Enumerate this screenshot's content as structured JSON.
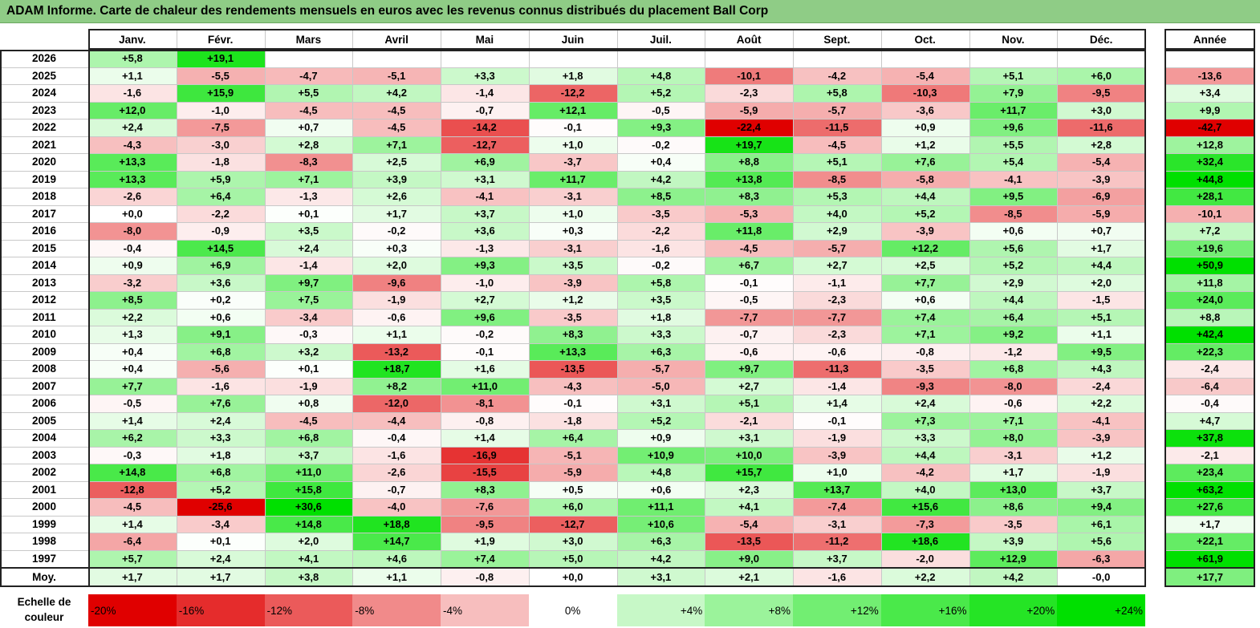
{
  "colors": {
    "title_bg": "#8fcc86",
    "positive_max": "#00e000",
    "negative_max": "#e00000",
    "neutral": "#ffffff"
  },
  "chart_data": {
    "type": "heatmap",
    "title": "ADAM Informe. Carte de chaleur des rendements mensuels en euros avec les revenus connus distribués du placement Ball Corp",
    "columns": [
      "Janv.",
      "Févr.",
      "Mars",
      "Avril",
      "Mai",
      "Juin",
      "Juil.",
      "Août",
      "Sept.",
      "Oct.",
      "Nov.",
      "Déc."
    ],
    "year_column_label": "Année",
    "avg_row_label": "Moy.",
    "rows": [
      {
        "label": "2026",
        "values": [
          "+5,8",
          "+19,1",
          "",
          "",
          "",
          "",
          "",
          "",
          "",
          "",
          "",
          ""
        ],
        "year": ""
      },
      {
        "label": "2025",
        "values": [
          "+1,1",
          "-5,5",
          "-4,7",
          "-5,1",
          "+3,3",
          "+1,8",
          "+4,8",
          "-10,1",
          "-4,2",
          "-5,4",
          "+5,1",
          "+6,0"
        ],
        "year": "-13,6"
      },
      {
        "label": "2024",
        "values": [
          "-1,6",
          "+15,9",
          "+5,5",
          "+4,2",
          "-1,4",
          "-12,2",
          "+5,2",
          "-2,3",
          "+5,8",
          "-10,3",
          "+7,9",
          "-9,5"
        ],
        "year": "+3,4"
      },
      {
        "label": "2023",
        "values": [
          "+12,0",
          "-1,0",
          "-4,5",
          "-4,5",
          "-0,7",
          "+12,1",
          "-0,5",
          "-5,9",
          "-5,7",
          "-3,6",
          "+11,7",
          "+3,0"
        ],
        "year": "+9,9"
      },
      {
        "label": "2022",
        "values": [
          "+2,4",
          "-7,5",
          "+0,7",
          "-4,5",
          "-14,2",
          "-0,1",
          "+9,3",
          "-22,4",
          "-11,5",
          "+0,9",
          "+9,6",
          "-11,6"
        ],
        "year": "-42,7"
      },
      {
        "label": "2021",
        "values": [
          "-4,3",
          "-3,0",
          "+2,8",
          "+7,1",
          "-12,7",
          "+1,0",
          "-0,2",
          "+19,7",
          "-4,5",
          "+1,2",
          "+5,5",
          "+2,8"
        ],
        "year": "+12,8"
      },
      {
        "label": "2020",
        "values": [
          "+13,3",
          "-1,8",
          "-8,3",
          "+2,5",
          "+6,9",
          "-3,7",
          "+0,4",
          "+8,8",
          "+5,1",
          "+7,6",
          "+5,4",
          "-5,4"
        ],
        "year": "+32,4"
      },
      {
        "label": "2019",
        "values": [
          "+13,3",
          "+5,9",
          "+7,1",
          "+3,9",
          "+3,1",
          "+11,7",
          "+4,2",
          "+13,8",
          "-8,5",
          "-5,8",
          "-4,1",
          "-3,9"
        ],
        "year": "+44,8"
      },
      {
        "label": "2018",
        "values": [
          "-2,6",
          "+6,4",
          "-1,3",
          "+2,6",
          "-4,1",
          "-3,1",
          "+8,5",
          "+8,3",
          "+5,3",
          "+4,4",
          "+9,5",
          "-6,9"
        ],
        "year": "+28,1"
      },
      {
        "label": "2017",
        "values": [
          "+0,0",
          "-2,2",
          "+0,1",
          "+1,7",
          "+3,7",
          "+1,0",
          "-3,5",
          "-5,3",
          "+4,0",
          "+5,2",
          "-8,5",
          "-5,9"
        ],
        "year": "-10,1"
      },
      {
        "label": "2016",
        "values": [
          "-8,0",
          "-0,9",
          "+3,5",
          "-0,2",
          "+3,6",
          "+0,3",
          "-2,2",
          "+11,8",
          "+2,9",
          "-3,9",
          "+0,6",
          "+0,7"
        ],
        "year": "+7,2"
      },
      {
        "label": "2015",
        "values": [
          "-0,4",
          "+14,5",
          "+2,4",
          "+0,3",
          "-1,3",
          "-3,1",
          "-1,6",
          "-4,5",
          "-5,7",
          "+12,2",
          "+5,6",
          "+1,7"
        ],
        "year": "+19,6"
      },
      {
        "label": "2014",
        "values": [
          "+0,9",
          "+6,9",
          "-1,4",
          "+2,0",
          "+9,3",
          "+3,5",
          "-0,2",
          "+6,7",
          "+2,7",
          "+2,5",
          "+5,2",
          "+4,4"
        ],
        "year": "+50,9"
      },
      {
        "label": "2013",
        "values": [
          "-3,2",
          "+3,6",
          "+9,7",
          "-9,6",
          "-1,0",
          "-3,9",
          "+5,8",
          "-0,1",
          "-1,1",
          "+7,7",
          "+2,9",
          "+2,0"
        ],
        "year": "+11,8"
      },
      {
        "label": "2012",
        "values": [
          "+8,5",
          "+0,2",
          "+7,5",
          "-1,9",
          "+2,7",
          "+1,2",
          "+3,5",
          "-0,5",
          "-2,3",
          "+0,6",
          "+4,4",
          "-1,5"
        ],
        "year": "+24,0"
      },
      {
        "label": "2011",
        "values": [
          "+2,2",
          "+0,6",
          "-3,4",
          "-0,6",
          "+9,6",
          "-3,5",
          "+1,8",
          "-7,7",
          "-7,7",
          "+7,4",
          "+6,4",
          "+5,1"
        ],
        "year": "+8,8"
      },
      {
        "label": "2010",
        "values": [
          "+1,3",
          "+9,1",
          "-0,3",
          "+1,1",
          "-0,2",
          "+8,3",
          "+3,3",
          "-0,7",
          "-2,3",
          "+7,1",
          "+9,2",
          "+1,1"
        ],
        "year": "+42,4"
      },
      {
        "label": "2009",
        "values": [
          "+0,4",
          "+6,8",
          "+3,2",
          "-13,2",
          "-0,1",
          "+13,3",
          "+6,3",
          "-0,6",
          "-0,6",
          "-0,8",
          "-1,2",
          "+9,5"
        ],
        "year": "+22,3"
      },
      {
        "label": "2008",
        "values": [
          "+0,4",
          "-5,6",
          "+0,1",
          "+18,7",
          "+1,6",
          "-13,5",
          "-5,7",
          "+9,7",
          "-11,3",
          "-3,5",
          "+6,8",
          "+4,3"
        ],
        "year": "-2,4"
      },
      {
        "label": "2007",
        "values": [
          "+7,7",
          "-1,6",
          "-1,9",
          "+8,2",
          "+11,0",
          "-4,3",
          "-5,0",
          "+2,7",
          "-1,4",
          "-9,3",
          "-8,0",
          "-2,4"
        ],
        "year": "-6,4"
      },
      {
        "label": "2006",
        "values": [
          "-0,5",
          "+7,6",
          "+0,8",
          "-12,0",
          "-8,1",
          "-0,1",
          "+3,1",
          "+5,1",
          "+1,4",
          "+2,4",
          "-0,6",
          "+2,2"
        ],
        "year": "-0,4"
      },
      {
        "label": "2005",
        "values": [
          "+1,4",
          "+2,4",
          "-4,5",
          "-4,4",
          "-0,8",
          "-1,8",
          "+5,2",
          "-2,1",
          "-0,1",
          "+7,3",
          "+7,1",
          "-4,1"
        ],
        "year": "+4,7"
      },
      {
        "label": "2004",
        "values": [
          "+6,2",
          "+3,3",
          "+6,8",
          "-0,4",
          "+1,4",
          "+6,4",
          "+0,9",
          "+3,1",
          "-1,9",
          "+3,3",
          "+8,0",
          "-3,9"
        ],
        "year": "+37,8"
      },
      {
        "label": "2003",
        "values": [
          "-0,3",
          "+1,8",
          "+3,7",
          "-1,6",
          "-16,9",
          "-5,1",
          "+10,9",
          "+10,0",
          "-3,9",
          "+4,4",
          "-3,1",
          "+1,2"
        ],
        "year": "-2,1"
      },
      {
        "label": "2002",
        "values": [
          "+14,8",
          "+6,8",
          "+11,0",
          "-2,6",
          "-15,5",
          "-5,9",
          "+4,8",
          "+15,7",
          "+1,0",
          "-4,2",
          "+1,7",
          "-1,9"
        ],
        "year": "+23,4"
      },
      {
        "label": "2001",
        "values": [
          "-12,8",
          "+5,2",
          "+15,8",
          "-0,7",
          "+8,3",
          "+0,5",
          "+0,6",
          "+2,3",
          "+13,7",
          "+4,0",
          "+13,0",
          "+3,7"
        ],
        "year": "+63,2"
      },
      {
        "label": "2000",
        "values": [
          "-4,5",
          "-25,6",
          "+30,6",
          "-4,0",
          "-7,6",
          "+6,0",
          "+11,1",
          "+4,1",
          "-7,4",
          "+15,6",
          "+8,6",
          "+9,4"
        ],
        "year": "+27,6"
      },
      {
        "label": "1999",
        "values": [
          "+1,4",
          "-3,4",
          "+14,8",
          "+18,8",
          "-9,5",
          "-12,7",
          "+10,6",
          "-5,4",
          "-3,1",
          "-7,3",
          "-3,5",
          "+6,1"
        ],
        "year": "+1,7"
      },
      {
        "label": "1998",
        "values": [
          "-6,4",
          "+0,1",
          "+2,0",
          "+14,7",
          "+1,9",
          "+3,0",
          "+6,3",
          "-13,5",
          "-11,2",
          "+18,6",
          "+3,9",
          "+5,6"
        ],
        "year": "+22,1"
      },
      {
        "label": "1997",
        "values": [
          "+5,7",
          "+2,4",
          "+4,1",
          "+4,6",
          "+7,4",
          "+5,0",
          "+4,2",
          "+9,0",
          "+3,7",
          "-2,0",
          "+12,9",
          "-6,3"
        ],
        "year": "+61,9"
      }
    ],
    "average": {
      "values": [
        "+1,7",
        "+1,7",
        "+3,8",
        "+1,1",
        "-0,8",
        "+0,0",
        "+3,1",
        "+2,1",
        "-1,6",
        "+2,2",
        "+4,2",
        "-0,0"
      ],
      "year": "+17,7"
    },
    "scale": {
      "label_line1": "Echelle de",
      "label_line2": "couleur",
      "stops": [
        "-20%",
        "-16%",
        "-12%",
        "-8%",
        "-4%",
        "0%",
        "+4%",
        "+8%",
        "+12%",
        "+16%",
        "+20%",
        "+24%"
      ]
    }
  }
}
